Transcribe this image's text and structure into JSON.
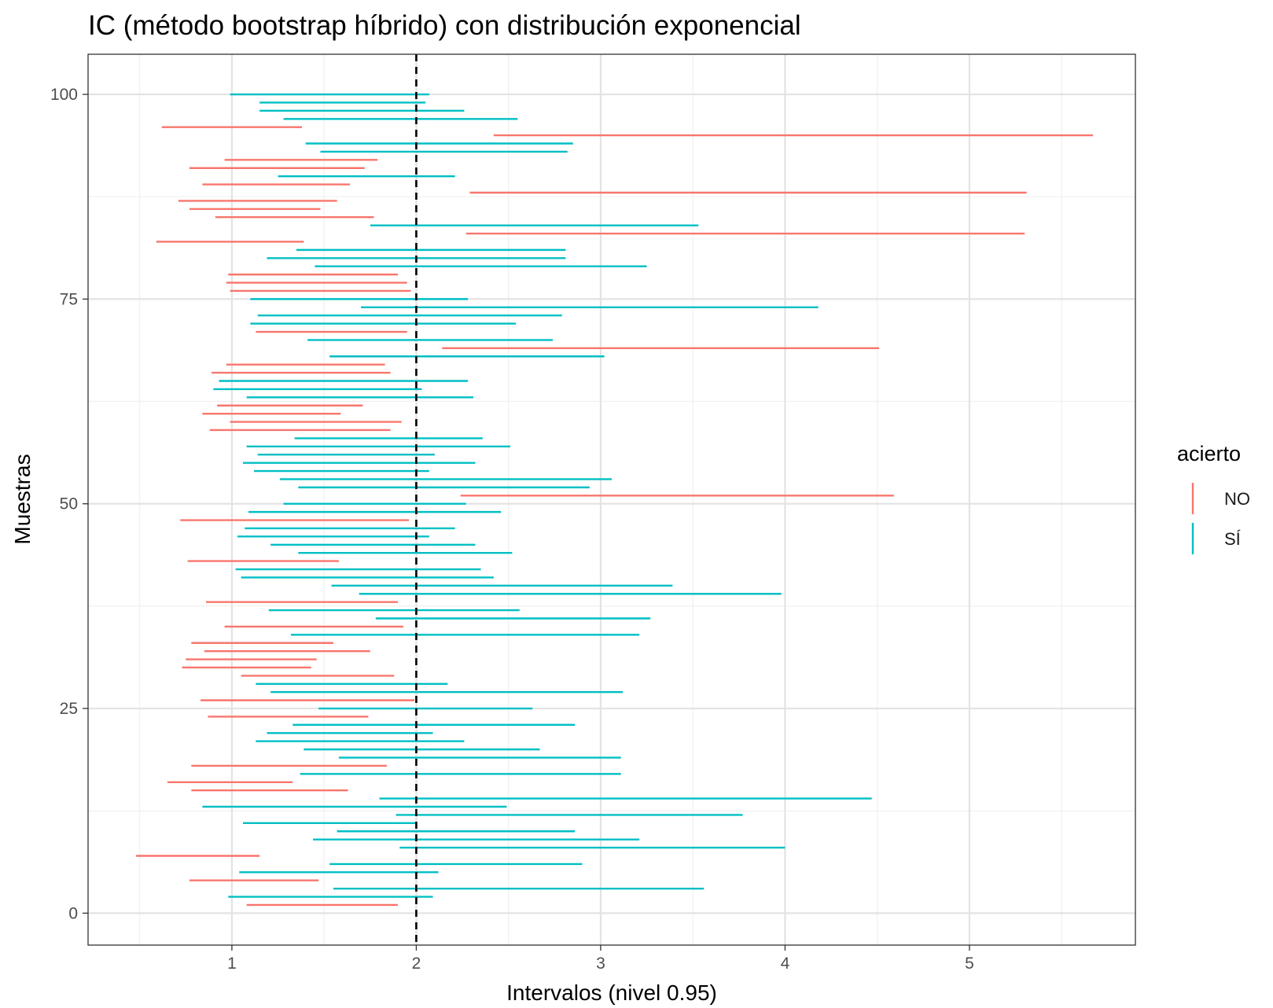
{
  "chart_data": {
    "type": "interval",
    "title": "IC (método bootstrap híbrido) con distribución exponencial",
    "xlabel": "Intervalos (nivel 0.95)",
    "ylabel": "Muestras",
    "xlim": [
      0.22,
      5.9
    ],
    "ylim": [
      -3.9,
      104.9
    ],
    "x_ticks": [
      1,
      2,
      3,
      4,
      5
    ],
    "x_tick_labels": [
      "1",
      "2",
      "3",
      "4",
      "5"
    ],
    "y_ticks": [
      0,
      25,
      50,
      75,
      100
    ],
    "y_tick_labels": [
      "0",
      "25",
      "50",
      "75",
      "100"
    ],
    "reference_line": {
      "x": 2,
      "style": "dashed",
      "color": "#000000"
    },
    "grid": true,
    "legend": {
      "title": "acierto",
      "placement": "right",
      "entries": [
        {
          "label": "NO",
          "key": "NO",
          "color": "#F8766D"
        },
        {
          "label": "SÍ",
          "key": "SI",
          "color": "#00BFC4"
        }
      ]
    },
    "intervals": [
      {
        "sample": 1,
        "lower": 1.08,
        "upper": 1.9,
        "acierto": "NO"
      },
      {
        "sample": 2,
        "lower": 0.98,
        "upper": 2.09,
        "acierto": "SI"
      },
      {
        "sample": 3,
        "lower": 1.55,
        "upper": 3.56,
        "acierto": "SI"
      },
      {
        "sample": 4,
        "lower": 0.77,
        "upper": 1.47,
        "acierto": "NO"
      },
      {
        "sample": 5,
        "lower": 1.04,
        "upper": 2.12,
        "acierto": "SI"
      },
      {
        "sample": 6,
        "lower": 1.53,
        "upper": 2.9,
        "acierto": "SI"
      },
      {
        "sample": 7,
        "lower": 0.48,
        "upper": 1.15,
        "acierto": "NO"
      },
      {
        "sample": 8,
        "lower": 1.91,
        "upper": 4.0,
        "acierto": "SI"
      },
      {
        "sample": 9,
        "lower": 1.44,
        "upper": 3.21,
        "acierto": "SI"
      },
      {
        "sample": 10,
        "lower": 1.57,
        "upper": 2.86,
        "acierto": "SI"
      },
      {
        "sample": 11,
        "lower": 1.06,
        "upper": 2.0,
        "acierto": "SI"
      },
      {
        "sample": 12,
        "lower": 1.89,
        "upper": 3.77,
        "acierto": "SI"
      },
      {
        "sample": 13,
        "lower": 0.84,
        "upper": 2.49,
        "acierto": "SI"
      },
      {
        "sample": 14,
        "lower": 1.8,
        "upper": 4.47,
        "acierto": "SI"
      },
      {
        "sample": 15,
        "lower": 0.78,
        "upper": 1.63,
        "acierto": "NO"
      },
      {
        "sample": 16,
        "lower": 0.65,
        "upper": 1.33,
        "acierto": "NO"
      },
      {
        "sample": 17,
        "lower": 1.37,
        "upper": 3.11,
        "acierto": "SI"
      },
      {
        "sample": 18,
        "lower": 0.78,
        "upper": 1.84,
        "acierto": "NO"
      },
      {
        "sample": 19,
        "lower": 1.58,
        "upper": 3.11,
        "acierto": "SI"
      },
      {
        "sample": 20,
        "lower": 1.39,
        "upper": 2.67,
        "acierto": "SI"
      },
      {
        "sample": 21,
        "lower": 1.13,
        "upper": 2.26,
        "acierto": "SI"
      },
      {
        "sample": 22,
        "lower": 1.19,
        "upper": 2.09,
        "acierto": "SI"
      },
      {
        "sample": 23,
        "lower": 1.33,
        "upper": 2.86,
        "acierto": "SI"
      },
      {
        "sample": 24,
        "lower": 0.87,
        "upper": 1.74,
        "acierto": "NO"
      },
      {
        "sample": 25,
        "lower": 1.47,
        "upper": 2.63,
        "acierto": "SI"
      },
      {
        "sample": 26,
        "lower": 0.83,
        "upper": 1.99,
        "acierto": "NO"
      },
      {
        "sample": 27,
        "lower": 1.21,
        "upper": 3.12,
        "acierto": "SI"
      },
      {
        "sample": 28,
        "lower": 1.13,
        "upper": 2.17,
        "acierto": "SI"
      },
      {
        "sample": 29,
        "lower": 1.05,
        "upper": 1.88,
        "acierto": "NO"
      },
      {
        "sample": 30,
        "lower": 0.73,
        "upper": 1.43,
        "acierto": "NO"
      },
      {
        "sample": 31,
        "lower": 0.75,
        "upper": 1.46,
        "acierto": "NO"
      },
      {
        "sample": 32,
        "lower": 0.85,
        "upper": 1.75,
        "acierto": "NO"
      },
      {
        "sample": 33,
        "lower": 0.78,
        "upper": 1.55,
        "acierto": "NO"
      },
      {
        "sample": 34,
        "lower": 1.32,
        "upper": 3.21,
        "acierto": "SI"
      },
      {
        "sample": 35,
        "lower": 0.96,
        "upper": 1.93,
        "acierto": "NO"
      },
      {
        "sample": 36,
        "lower": 1.78,
        "upper": 3.27,
        "acierto": "SI"
      },
      {
        "sample": 37,
        "lower": 1.2,
        "upper": 2.56,
        "acierto": "SI"
      },
      {
        "sample": 38,
        "lower": 0.86,
        "upper": 1.9,
        "acierto": "NO"
      },
      {
        "sample": 39,
        "lower": 1.69,
        "upper": 3.98,
        "acierto": "SI"
      },
      {
        "sample": 40,
        "lower": 1.54,
        "upper": 3.39,
        "acierto": "SI"
      },
      {
        "sample": 41,
        "lower": 1.05,
        "upper": 2.42,
        "acierto": "SI"
      },
      {
        "sample": 42,
        "lower": 1.02,
        "upper": 2.35,
        "acierto": "SI"
      },
      {
        "sample": 43,
        "lower": 0.76,
        "upper": 1.58,
        "acierto": "NO"
      },
      {
        "sample": 44,
        "lower": 1.36,
        "upper": 2.52,
        "acierto": "SI"
      },
      {
        "sample": 45,
        "lower": 1.21,
        "upper": 2.32,
        "acierto": "SI"
      },
      {
        "sample": 46,
        "lower": 1.03,
        "upper": 2.07,
        "acierto": "SI"
      },
      {
        "sample": 47,
        "lower": 1.07,
        "upper": 2.21,
        "acierto": "SI"
      },
      {
        "sample": 48,
        "lower": 0.72,
        "upper": 1.96,
        "acierto": "NO"
      },
      {
        "sample": 49,
        "lower": 1.09,
        "upper": 2.46,
        "acierto": "SI"
      },
      {
        "sample": 50,
        "lower": 1.28,
        "upper": 2.27,
        "acierto": "SI"
      },
      {
        "sample": 51,
        "lower": 2.24,
        "upper": 4.59,
        "acierto": "NO"
      },
      {
        "sample": 52,
        "lower": 1.36,
        "upper": 2.94,
        "acierto": "SI"
      },
      {
        "sample": 53,
        "lower": 1.26,
        "upper": 3.06,
        "acierto": "SI"
      },
      {
        "sample": 54,
        "lower": 1.12,
        "upper": 2.07,
        "acierto": "SI"
      },
      {
        "sample": 55,
        "lower": 1.06,
        "upper": 2.32,
        "acierto": "SI"
      },
      {
        "sample": 56,
        "lower": 1.14,
        "upper": 2.1,
        "acierto": "SI"
      },
      {
        "sample": 57,
        "lower": 1.08,
        "upper": 2.51,
        "acierto": "SI"
      },
      {
        "sample": 58,
        "lower": 1.34,
        "upper": 2.36,
        "acierto": "SI"
      },
      {
        "sample": 59,
        "lower": 0.88,
        "upper": 1.86,
        "acierto": "NO"
      },
      {
        "sample": 60,
        "lower": 0.99,
        "upper": 1.92,
        "acierto": "NO"
      },
      {
        "sample": 61,
        "lower": 0.84,
        "upper": 1.59,
        "acierto": "NO"
      },
      {
        "sample": 62,
        "lower": 0.92,
        "upper": 1.71,
        "acierto": "NO"
      },
      {
        "sample": 63,
        "lower": 1.08,
        "upper": 2.31,
        "acierto": "SI"
      },
      {
        "sample": 64,
        "lower": 0.9,
        "upper": 2.03,
        "acierto": "SI"
      },
      {
        "sample": 65,
        "lower": 0.93,
        "upper": 2.28,
        "acierto": "SI"
      },
      {
        "sample": 66,
        "lower": 0.89,
        "upper": 1.86,
        "acierto": "NO"
      },
      {
        "sample": 67,
        "lower": 0.97,
        "upper": 1.83,
        "acierto": "NO"
      },
      {
        "sample": 68,
        "lower": 1.53,
        "upper": 3.02,
        "acierto": "SI"
      },
      {
        "sample": 69,
        "lower": 2.14,
        "upper": 4.51,
        "acierto": "NO"
      },
      {
        "sample": 70,
        "lower": 1.41,
        "upper": 2.74,
        "acierto": "SI"
      },
      {
        "sample": 71,
        "lower": 1.13,
        "upper": 1.95,
        "acierto": "NO"
      },
      {
        "sample": 72,
        "lower": 1.1,
        "upper": 2.54,
        "acierto": "SI"
      },
      {
        "sample": 73,
        "lower": 1.14,
        "upper": 2.79,
        "acierto": "SI"
      },
      {
        "sample": 74,
        "lower": 1.7,
        "upper": 4.18,
        "acierto": "SI"
      },
      {
        "sample": 75,
        "lower": 1.1,
        "upper": 2.28,
        "acierto": "SI"
      },
      {
        "sample": 76,
        "lower": 0.99,
        "upper": 1.97,
        "acierto": "NO"
      },
      {
        "sample": 77,
        "lower": 0.97,
        "upper": 1.95,
        "acierto": "NO"
      },
      {
        "sample": 78,
        "lower": 0.98,
        "upper": 1.9,
        "acierto": "NO"
      },
      {
        "sample": 79,
        "lower": 1.45,
        "upper": 3.25,
        "acierto": "SI"
      },
      {
        "sample": 80,
        "lower": 1.19,
        "upper": 2.81,
        "acierto": "SI"
      },
      {
        "sample": 81,
        "lower": 1.35,
        "upper": 2.81,
        "acierto": "SI"
      },
      {
        "sample": 82,
        "lower": 0.59,
        "upper": 1.39,
        "acierto": "NO"
      },
      {
        "sample": 83,
        "lower": 2.27,
        "upper": 5.3,
        "acierto": "NO"
      },
      {
        "sample": 84,
        "lower": 1.75,
        "upper": 3.53,
        "acierto": "SI"
      },
      {
        "sample": 85,
        "lower": 0.91,
        "upper": 1.77,
        "acierto": "NO"
      },
      {
        "sample": 86,
        "lower": 0.77,
        "upper": 1.48,
        "acierto": "NO"
      },
      {
        "sample": 87,
        "lower": 0.71,
        "upper": 1.57,
        "acierto": "NO"
      },
      {
        "sample": 88,
        "lower": 2.29,
        "upper": 5.31,
        "acierto": "NO"
      },
      {
        "sample": 89,
        "lower": 0.84,
        "upper": 1.64,
        "acierto": "NO"
      },
      {
        "sample": 90,
        "lower": 1.25,
        "upper": 2.21,
        "acierto": "SI"
      },
      {
        "sample": 91,
        "lower": 0.77,
        "upper": 1.72,
        "acierto": "NO"
      },
      {
        "sample": 92,
        "lower": 0.96,
        "upper": 1.79,
        "acierto": "NO"
      },
      {
        "sample": 93,
        "lower": 1.48,
        "upper": 2.82,
        "acierto": "SI"
      },
      {
        "sample": 94,
        "lower": 1.4,
        "upper": 2.85,
        "acierto": "SI"
      },
      {
        "sample": 95,
        "lower": 2.42,
        "upper": 5.67,
        "acierto": "NO"
      },
      {
        "sample": 96,
        "lower": 0.62,
        "upper": 1.38,
        "acierto": "NO"
      },
      {
        "sample": 97,
        "lower": 1.28,
        "upper": 2.55,
        "acierto": "SI"
      },
      {
        "sample": 98,
        "lower": 1.15,
        "upper": 2.26,
        "acierto": "SI"
      },
      {
        "sample": 99,
        "lower": 1.15,
        "upper": 2.05,
        "acierto": "SI"
      },
      {
        "sample": 100,
        "lower": 0.99,
        "upper": 2.07,
        "acierto": "SI"
      }
    ]
  }
}
